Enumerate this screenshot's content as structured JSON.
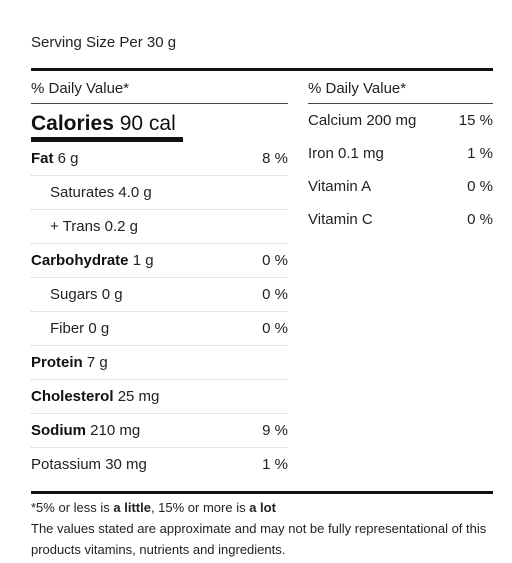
{
  "serving_size": "Serving Size Per 30 g",
  "left_header": "% Daily Value*",
  "right_header": "% Daily Value*",
  "calories": {
    "label": "Calories",
    "value": "90 cal"
  },
  "nutrients": [
    {
      "label": "Fat",
      "amount": "6 g",
      "pct": "8 %",
      "bold": true
    },
    {
      "label": "Saturates",
      "amount": "4.0 g",
      "pct": "",
      "indent": true
    },
    {
      "label": "+ Trans",
      "amount": "0.2 g",
      "pct": "",
      "indent": true
    },
    {
      "label": "Carbohydrate",
      "amount": "1 g",
      "pct": "0 %",
      "bold": true
    },
    {
      "label": "Sugars",
      "amount": "0 g",
      "pct": "0 %",
      "indent": true
    },
    {
      "label": "Fiber",
      "amount": "0 g",
      "pct": "0 %",
      "indent": true
    },
    {
      "label": "Protein",
      "amount": "7 g",
      "pct": "",
      "bold": true
    },
    {
      "label": "Cholesterol",
      "amount": "25 mg",
      "pct": "",
      "bold": true
    },
    {
      "label": "Sodium",
      "amount": "210 mg",
      "pct": "9 %",
      "bold": true
    },
    {
      "label": "Potassium",
      "amount": "30 mg",
      "pct": "1 %"
    }
  ],
  "vitamins": [
    {
      "label": "Calcium 200 mg",
      "pct": "15 %"
    },
    {
      "label": "Iron 0.1 mg",
      "pct": "1 %"
    },
    {
      "label": "Vitamin A",
      "pct": "0 %"
    },
    {
      "label": "Vitamin C",
      "pct": "0 %"
    }
  ],
  "footnote": {
    "p1_a": "*5% or less is ",
    "p1_b": "a little",
    "p1_c": ", 15% or more is ",
    "p1_d": "a lot",
    "p2": "The values stated are approximate and may not be fully representational of this products vitamins, nutrients and ingredients."
  }
}
